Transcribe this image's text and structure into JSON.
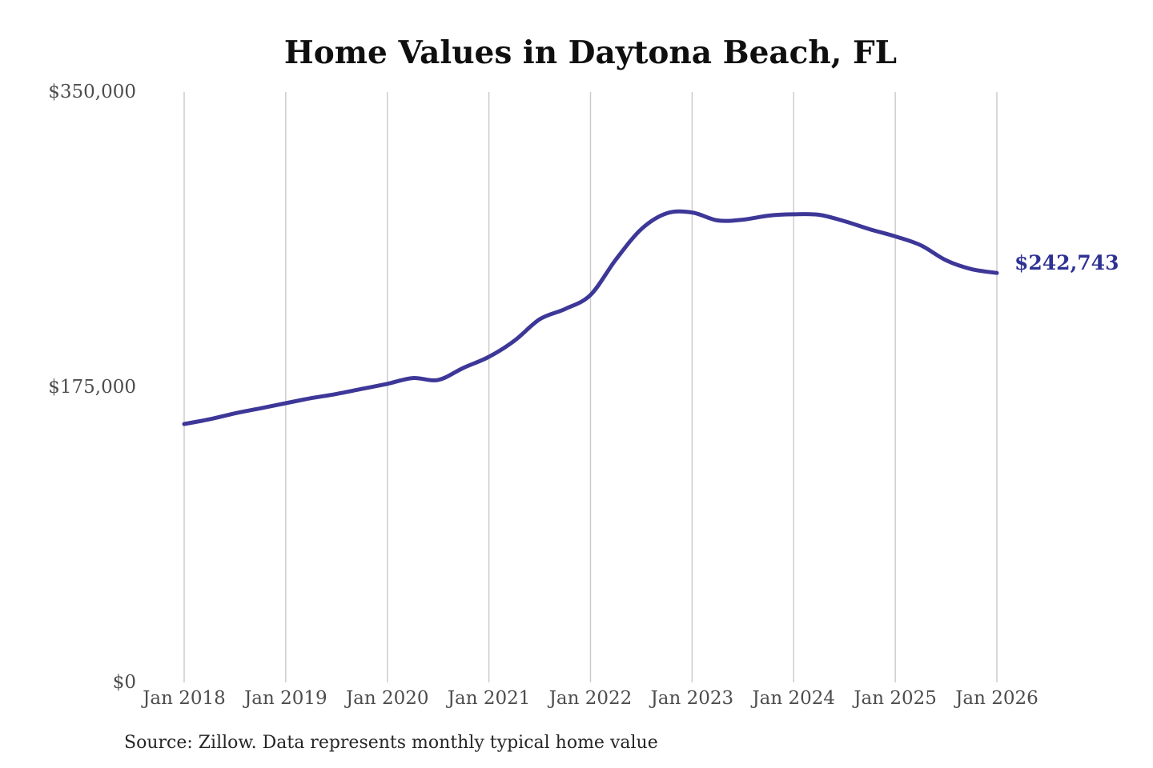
{
  "chart_data": {
    "type": "line",
    "title": "Home Values in Daytona Beach, FL",
    "source": "Source: Zillow. Data represents monthly typical home value",
    "series_name": "Monthly typical home value",
    "end_label": "$242,743",
    "latest_value": 242743,
    "ylim": [
      0,
      350000
    ],
    "grid": "vertical-only",
    "legend": "none",
    "yticks": [
      {
        "value": 350000,
        "label": "$350,000"
      },
      {
        "value": 175000,
        "label": "$175,000"
      },
      {
        "value": 0,
        "label": "$0"
      }
    ],
    "xticks": [
      "Jan 2018",
      "Jan 2019",
      "Jan 2020",
      "Jan 2021",
      "Jan 2022",
      "Jan 2023",
      "Jan 2024",
      "Jan 2025",
      "Jan 2026"
    ],
    "x": [
      "Jan 2018",
      "Apr 2018",
      "Jul 2018",
      "Oct 2018",
      "Jan 2019",
      "Apr 2019",
      "Jul 2019",
      "Oct 2019",
      "Jan 2020",
      "Apr 2020",
      "Jul 2020",
      "Oct 2020",
      "Jan 2021",
      "Apr 2021",
      "Jul 2021",
      "Oct 2021",
      "Jan 2022",
      "Apr 2022",
      "Jul 2022",
      "Oct 2022",
      "Jan 2023",
      "Apr 2023",
      "Jul 2023",
      "Oct 2023",
      "Jan 2024",
      "Apr 2024",
      "Jul 2024",
      "Oct 2024",
      "Jan 2025",
      "Apr 2025",
      "Jul 2025",
      "Oct 2025",
      "Jan 2026"
    ],
    "values": [
      153200,
      156000,
      159500,
      162500,
      165500,
      168500,
      171000,
      174000,
      177000,
      180400,
      179300,
      186500,
      193000,
      202500,
      215300,
      221400,
      229700,
      250700,
      268700,
      278100,
      278600,
      273900,
      274300,
      276700,
      277500,
      277200,
      273400,
      268600,
      264400,
      259200,
      250200,
      245000,
      242743
    ],
    "colors": {
      "line": "#3d3798",
      "end_label": "#2f3293",
      "grid": "#c9c9c9",
      "tick_label": "#4d4d4d",
      "title": "#0f0f0f",
      "source": "#262626",
      "background": "#ffffff"
    }
  }
}
